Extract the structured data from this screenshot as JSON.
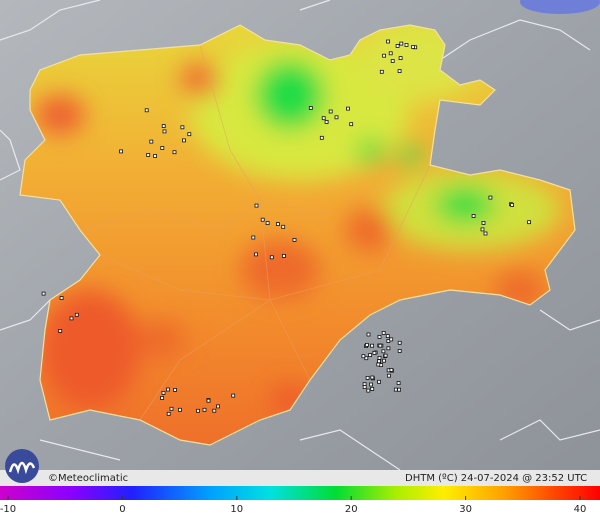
{
  "credit": "©Meteoclimatic",
  "caption": "DHTM (ºC)   24-07-2024 @ 23:52 UTC",
  "colorbar": {
    "lim": [
      -10,
      40
    ],
    "ticks": [
      -10,
      0,
      10,
      20,
      30,
      40
    ]
  }
}
